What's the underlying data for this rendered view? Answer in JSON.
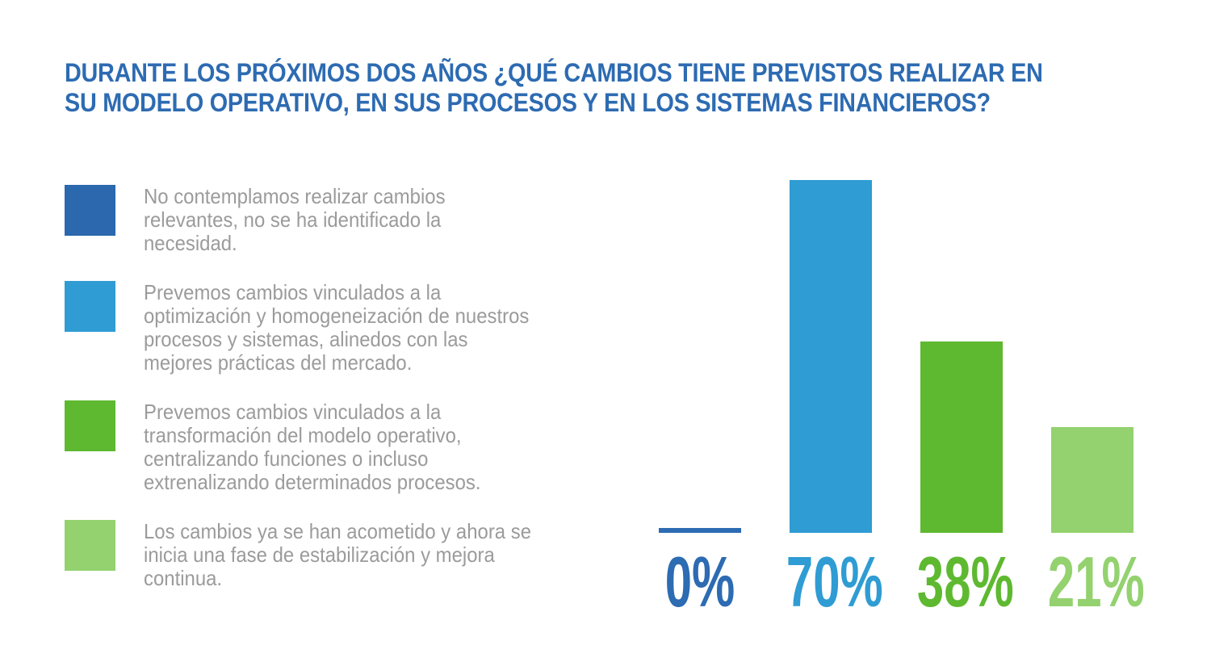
{
  "title": "DURANTE LOS PRÓXIMOS DOS AÑOS ¿QUÉ CAMBIOS TIENE PREVISTOS REALIZAR EN\nSU MODELO OPERATIVO, EN SUS PROCESOS Y EN LOS SISTEMAS FINANCIEROS?",
  "colors": {
    "title_blue": "#2d6bb2",
    "legend_text_gray": "#9b9b9b",
    "dark_blue": "#2b68ae",
    "light_blue": "#2f9cd3",
    "green": "#5eb930",
    "light_green": "#93d26f",
    "background": "#ffffff"
  },
  "legend": {
    "items": [
      {
        "color": "#2b68ae",
        "label": "No contemplamos realizar cambios\nrelevantes, no se ha identificado la\nnecesidad."
      },
      {
        "color": "#2f9cd3",
        "label": "Prevemos cambios vinculados a la\noptimización y homogeneización de nuestros\nprocesos y sistemas, alinedos con las\nmejores prácticas del mercado."
      },
      {
        "color": "#5eb930",
        "label": "Prevemos cambios vinculados a la\ntransformación del modelo operativo,\ncentralizando funciones o incluso\nextrenalizando determinados procesos."
      },
      {
        "color": "#93d26f",
        "label": "Los cambios ya se han acometido y ahora se\ninicia una fase de estabilización y mejora\ncontinua."
      }
    ]
  },
  "chart_data": {
    "type": "bar",
    "title": "DURANTE LOS PRÓXIMOS DOS AÑOS ¿QUÉ CAMBIOS TIENE PREVISTOS REALIZAR EN SU MODELO OPERATIVO, EN SUS PROCESOS Y EN LOS SISTEMAS FINANCIEROS?",
    "categories": [
      "No contemplamos realizar cambios relevantes, no se ha identificado la necesidad.",
      "Prevemos cambios vinculados a la optimización y homogeneización de nuestros procesos y sistemas, alinedos con las mejores prácticas del mercado.",
      "Prevemos cambios vinculados a la transformación del modelo operativo, centralizando funciones o incluso extrenalizando determinados procesos.",
      "Los cambios ya se han acometido y ahora se inicia una fase de estabilización y mejora continua."
    ],
    "values": [
      0,
      70,
      38,
      21
    ],
    "value_labels": [
      "0%",
      "70%",
      "38%",
      "21%"
    ],
    "bar_colors": [
      "#2d6bb2",
      "#2f9cd3",
      "#5eb930",
      "#93d26f"
    ],
    "xlabel": "",
    "ylabel": "",
    "ylim": [
      0,
      100
    ],
    "grid": false,
    "legend_position": "left"
  }
}
